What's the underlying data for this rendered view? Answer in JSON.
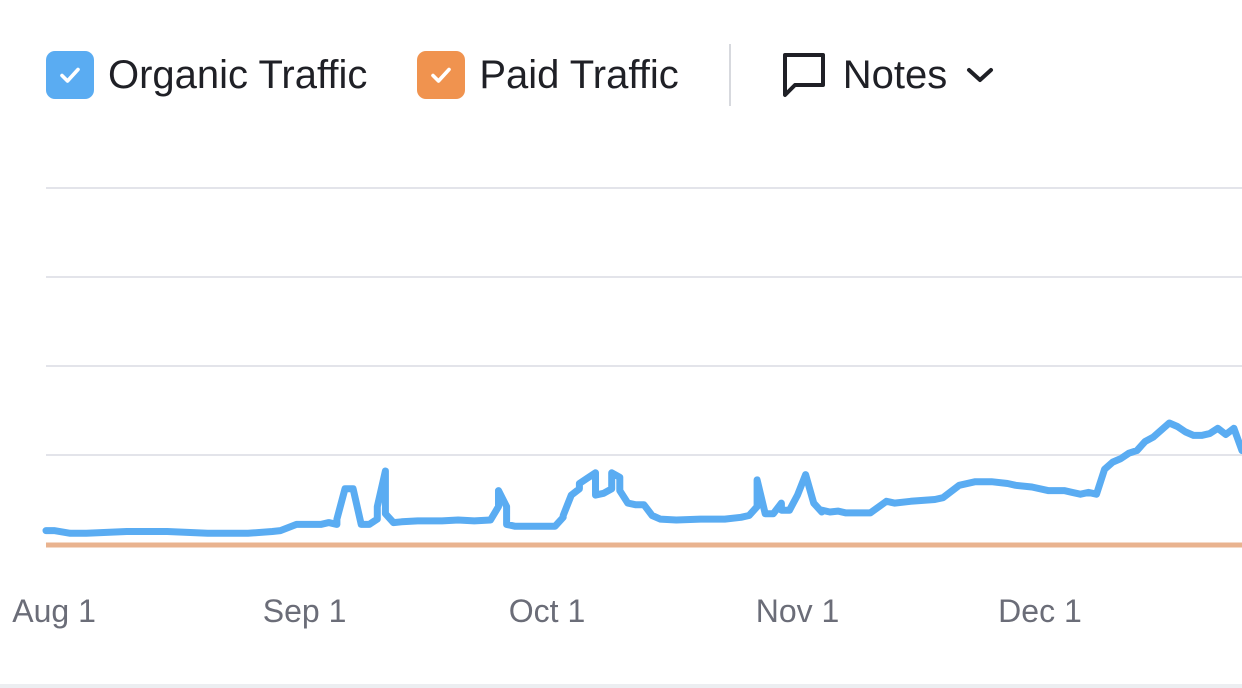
{
  "legend": {
    "organic": {
      "label": "Organic Traffic",
      "checked": true,
      "color": "#5aacf2",
      "icon": "checkmark-icon"
    },
    "paid": {
      "label": "Paid Traffic",
      "checked": true,
      "color": "#f0934f",
      "icon": "checkmark-icon"
    },
    "notes": {
      "label": "Notes",
      "icon": "comment-icon",
      "dropdown_icon": "chevron-down-icon"
    }
  },
  "colors": {
    "organic_line": "#5aacf2",
    "paid_line": "#e9b38f",
    "grid": "#e3e4ea",
    "tick_text": "#6b6d78"
  },
  "chart_data": {
    "type": "line",
    "title": "",
    "xlabel": "",
    "ylabel": "",
    "x_ticks": [
      "Aug 1",
      "Sep 1",
      "Oct 1",
      "Nov 1",
      "Dec 1"
    ],
    "x_range": [
      "Jul 31",
      "Dec 26"
    ],
    "ylim": [
      0,
      4
    ],
    "grid": true,
    "legend_placement": "top-left",
    "series": [
      {
        "name": "Organic Traffic",
        "color": "#5aacf2",
        "x": [
          "Jul 31",
          "Aug 1",
          "Aug 3",
          "Aug 5",
          "Aug 10",
          "Aug 15",
          "Aug 20",
          "Aug 25",
          "Aug 28",
          "Aug 29",
          "Aug 31",
          "Sep 1",
          "Sep 3",
          "Sep 4",
          "Sep 5",
          "Sep 5",
          "Sep 6",
          "Sep 7",
          "Sep 8",
          "Sep 9",
          "Sep 10",
          "Sep 10",
          "Sep 11",
          "Sep 11",
          "Sep 12",
          "Sep 13",
          "Sep 15",
          "Sep 18",
          "Sep 20",
          "Sep 22",
          "Sep 24",
          "Sep 25",
          "Sep 25",
          "Sep 26",
          "Sep 26",
          "Sep 27",
          "Sep 29",
          "Sep 30",
          "Oct 1",
          "Oct 2",
          "Oct 3",
          "Oct 3",
          "Oct 4",
          "Oct 5",
          "Oct 5",
          "Oct 6",
          "Oct 7",
          "Oct 7",
          "Oct 8",
          "Oct 9",
          "Oct 9",
          "Oct 10",
          "Oct 10",
          "Oct 11",
          "Oct 12",
          "Oct 13",
          "Oct 14",
          "Oct 15",
          "Oct 17",
          "Oct 20",
          "Oct 23",
          "Oct 25",
          "Oct 26",
          "Oct 27",
          "Oct 27",
          "Oct 28",
          "Oct 29",
          "Oct 30",
          "Oct 30",
          "Oct 31",
          "Nov 1",
          "Nov 2",
          "Nov 3",
          "Nov 4",
          "Nov 4",
          "Nov 5",
          "Nov 6",
          "Nov 7",
          "Nov 8",
          "Nov 10",
          "Nov 12",
          "Nov 13",
          "Nov 15",
          "Nov 18",
          "Nov 19",
          "Nov 21",
          "Nov 23",
          "Nov 25",
          "Nov 27",
          "Nov 28",
          "Nov 30",
          "Dec 2",
          "Dec 4",
          "Dec 5",
          "Dec 6",
          "Dec 7",
          "Dec 8",
          "Dec 9",
          "Dec 10",
          "Dec 11",
          "Dec 12",
          "Dec 13",
          "Dec 14",
          "Dec 15",
          "Dec 16",
          "Dec 17",
          "Dec 18",
          "Dec 19",
          "Dec 20",
          "Dec 21",
          "Dec 22",
          "Dec 23",
          "Dec 24",
          "Dec 25",
          "Dec 26"
        ],
        "y": [
          0.15,
          0.15,
          0.12,
          0.12,
          0.14,
          0.14,
          0.12,
          0.12,
          0.14,
          0.15,
          0.22,
          0.22,
          0.22,
          0.24,
          0.22,
          0.28,
          0.62,
          0.62,
          0.22,
          0.22,
          0.28,
          0.42,
          0.82,
          0.34,
          0.24,
          0.25,
          0.26,
          0.26,
          0.27,
          0.26,
          0.27,
          0.42,
          0.6,
          0.42,
          0.22,
          0.2,
          0.2,
          0.2,
          0.2,
          0.2,
          0.3,
          0.32,
          0.55,
          0.62,
          0.68,
          0.74,
          0.8,
          0.55,
          0.57,
          0.62,
          0.8,
          0.75,
          0.6,
          0.46,
          0.44,
          0.44,
          0.32,
          0.28,
          0.27,
          0.28,
          0.28,
          0.3,
          0.32,
          0.42,
          0.72,
          0.34,
          0.34,
          0.46,
          0.38,
          0.38,
          0.55,
          0.78,
          0.46,
          0.36,
          0.38,
          0.36,
          0.37,
          0.35,
          0.35,
          0.35,
          0.48,
          0.46,
          0.48,
          0.5,
          0.52,
          0.66,
          0.7,
          0.7,
          0.68,
          0.66,
          0.64,
          0.6,
          0.6,
          0.58,
          0.56,
          0.58,
          0.56,
          0.84,
          0.92,
          0.96,
          1.02,
          1.05,
          1.15,
          1.2,
          1.28,
          1.36,
          1.32,
          1.26,
          1.22,
          1.22,
          1.24,
          1.3,
          1.23,
          1.3,
          1.05
        ]
      },
      {
        "name": "Paid Traffic",
        "color": "#e9b38f",
        "x": [
          "Jul 31",
          "Dec 26"
        ],
        "y": [
          0,
          0
        ]
      }
    ]
  }
}
